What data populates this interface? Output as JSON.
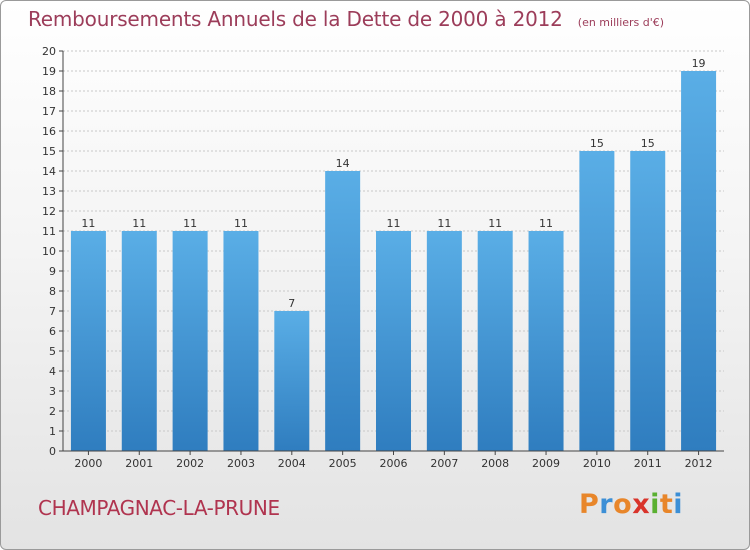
{
  "header": {
    "title": "Remboursements Annuels de la Dette de 2000 à 2012",
    "subtitle": "(en milliers d'€)"
  },
  "footer": {
    "commune": "CHAMPAGNAC-LA-PRUNE",
    "logo": "Proxiti"
  },
  "colors": {
    "title": "#9c3d5a",
    "bar_light": "#5aaee6",
    "bar_dark": "#2f7dbf",
    "logo": [
      "#e8862a",
      "#3c8fd6",
      "#e8862a",
      "#d9342b",
      "#5ab031",
      "#e8862a",
      "#3c8fd6"
    ]
  },
  "chart_data": {
    "type": "bar",
    "categories": [
      "2000",
      "2001",
      "2002",
      "2003",
      "2004",
      "2005",
      "2006",
      "2007",
      "2008",
      "2009",
      "2010",
      "2011",
      "2012"
    ],
    "values": [
      11,
      11,
      11,
      11,
      7,
      14,
      11,
      11,
      11,
      11,
      15,
      15,
      19
    ],
    "data_labels": [
      "11",
      "11",
      "11",
      "11",
      "7",
      "14",
      "11",
      "11",
      "11",
      "11",
      "15",
      "15",
      "19"
    ],
    "ylim": [
      0,
      20
    ],
    "yticks": [
      0,
      1,
      2,
      3,
      4,
      5,
      6,
      7,
      8,
      9,
      10,
      11,
      12,
      13,
      14,
      15,
      16,
      17,
      18,
      19,
      20
    ],
    "grid": true
  }
}
